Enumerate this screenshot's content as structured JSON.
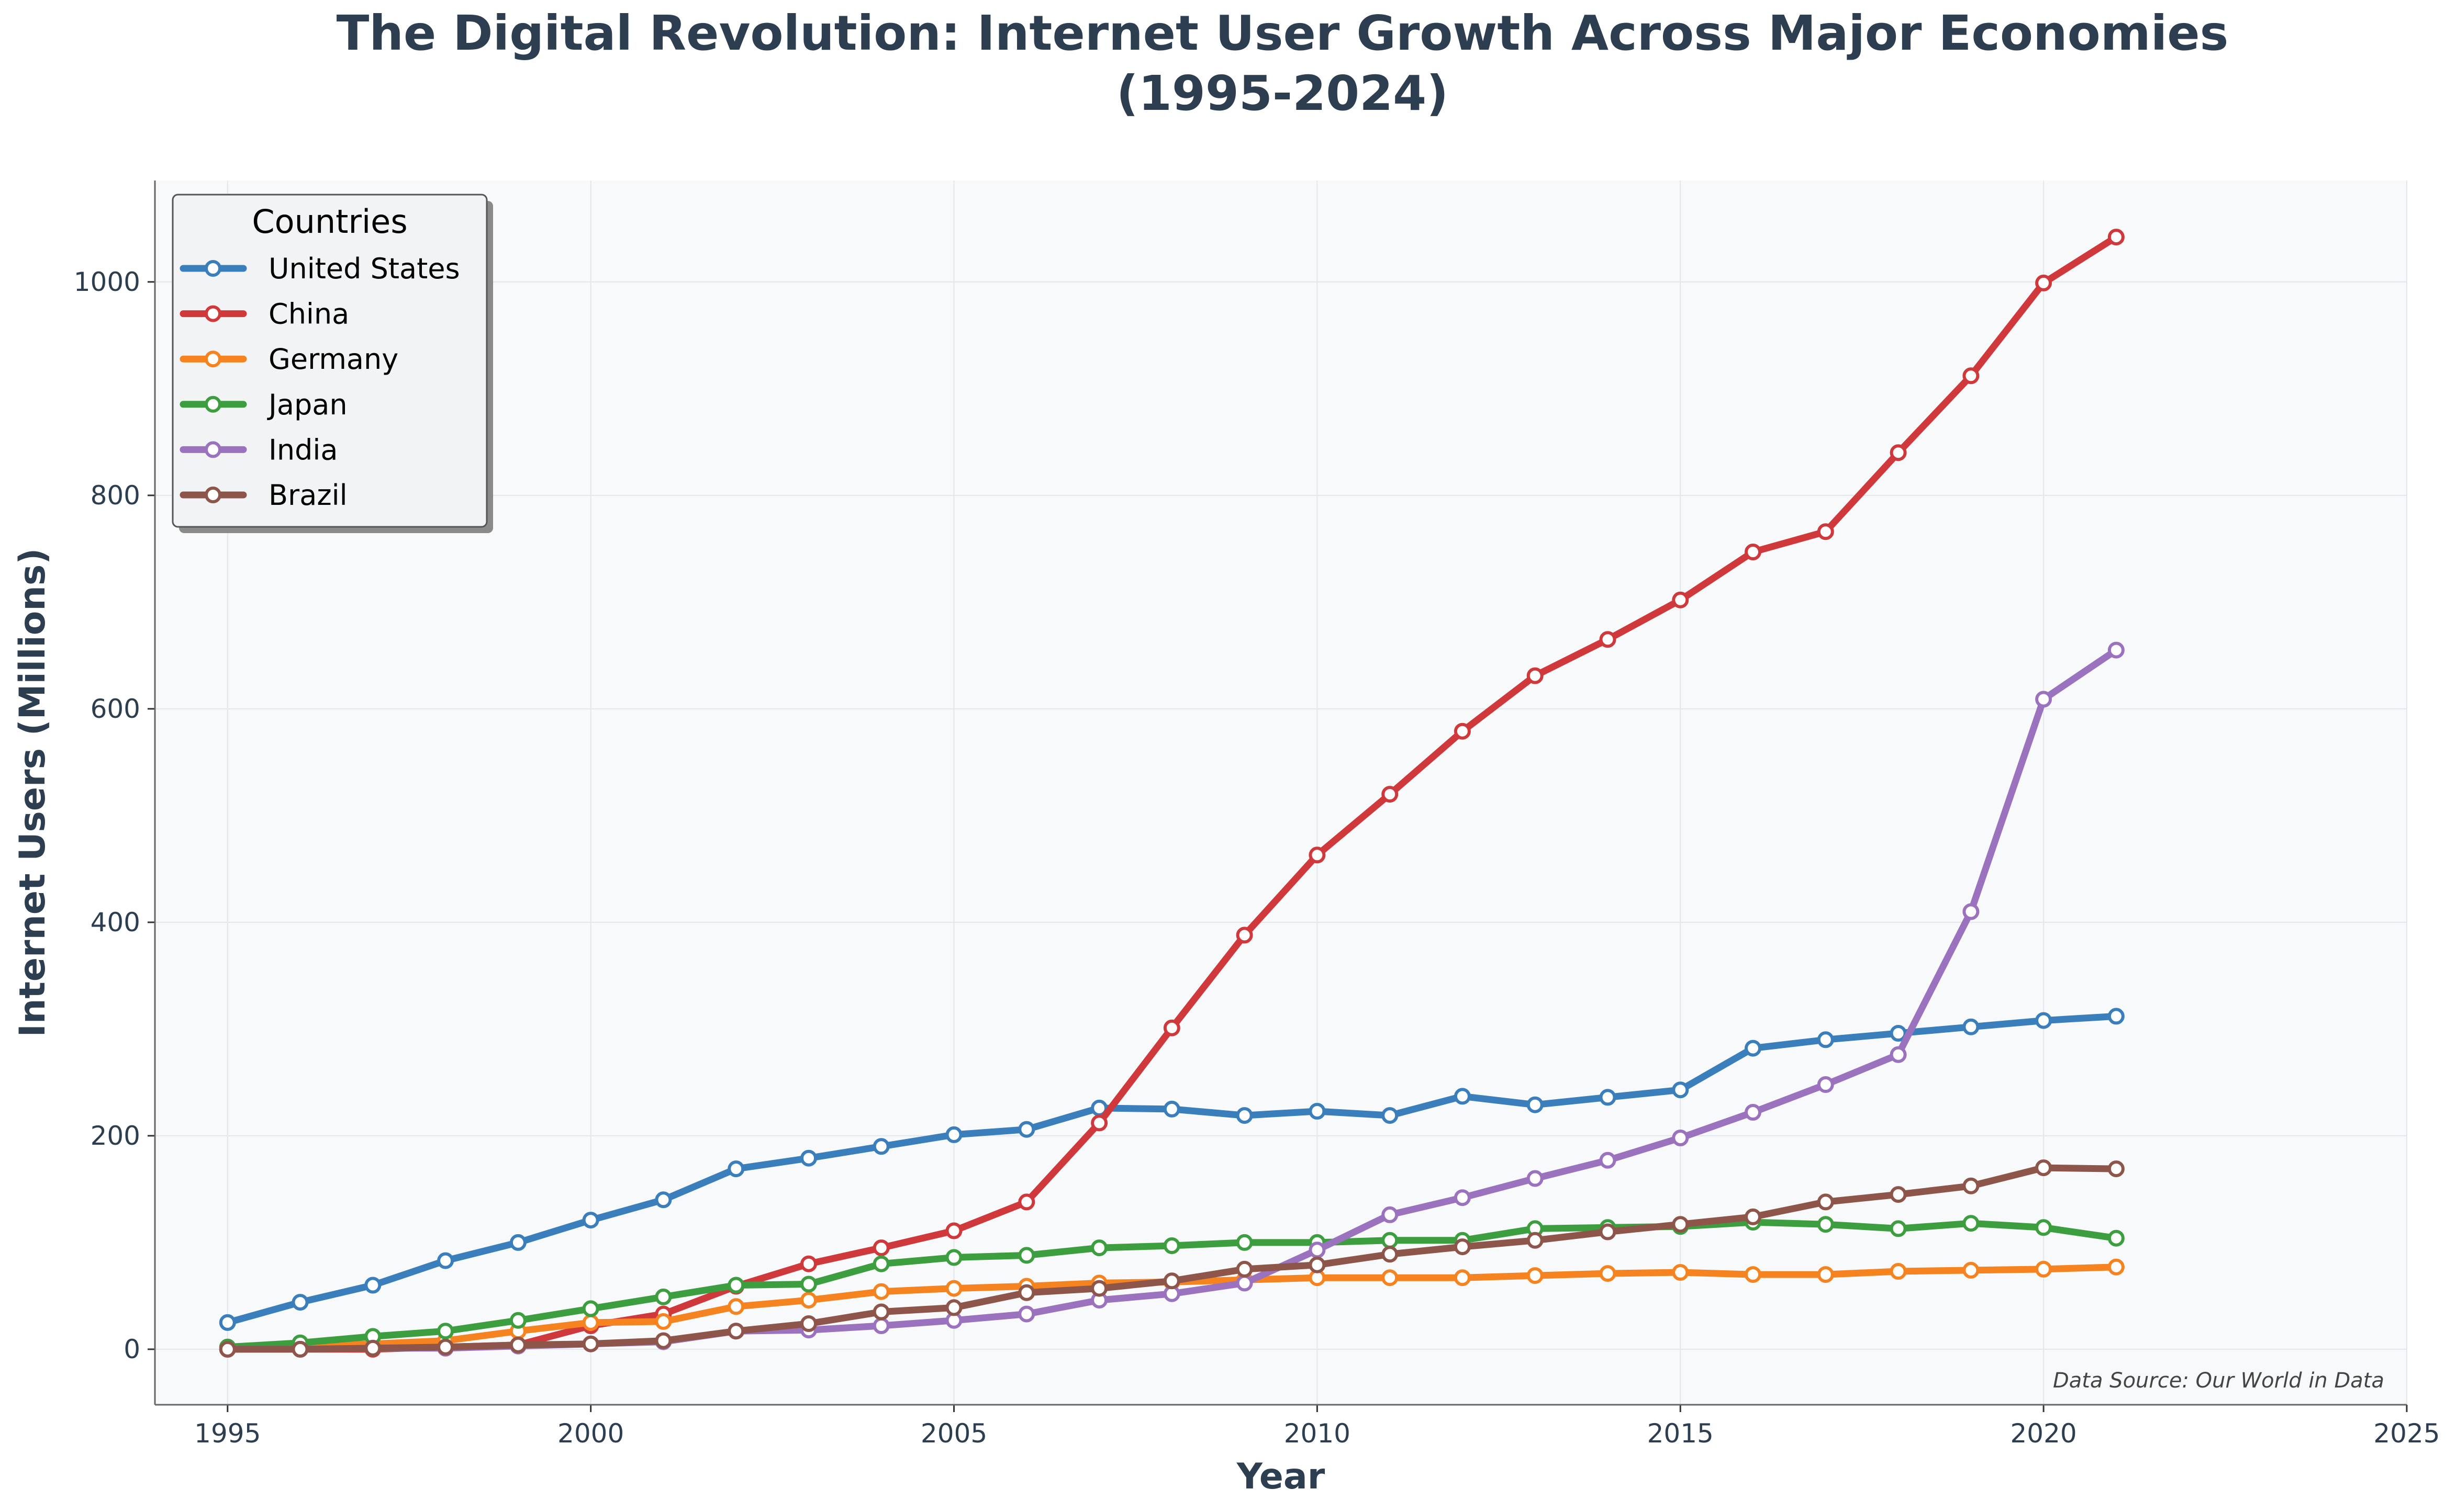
{
  "chart_data": {
    "type": "line",
    "title_line1": "The Digital Revolution: Internet User Growth Across Major Economies",
    "title_line2": "(1995-2024)",
    "xlabel": "Year",
    "ylabel": "Internet Users (Millions)",
    "xlim": [
      1994,
      2025
    ],
    "ylim": [
      -52,
      1095
    ],
    "xticks": [
      1995,
      2000,
      2005,
      2010,
      2015,
      2020,
      2025
    ],
    "yticks": [
      0,
      200,
      400,
      600,
      800,
      1000
    ],
    "grid": true,
    "legend_title": "Countries",
    "legend_position": "top-left",
    "source_note": "Data Source: Our World in Data",
    "x": [
      1995,
      1996,
      1997,
      1998,
      1999,
      2000,
      2001,
      2002,
      2003,
      2004,
      2005,
      2006,
      2007,
      2008,
      2009,
      2010,
      2011,
      2012,
      2013,
      2014,
      2015,
      2016,
      2017,
      2018,
      2019,
      2020,
      2021
    ],
    "series": [
      {
        "name": "United States",
        "color": "#3a7fbb",
        "values": [
          25,
          44,
          60,
          83,
          100,
          121,
          140,
          169,
          179,
          190,
          201,
          206,
          226,
          225,
          219,
          223,
          219,
          237,
          229,
          236,
          243,
          282,
          290,
          296,
          302,
          308,
          312
        ]
      },
      {
        "name": "China",
        "color": "#d0393b",
        "values": [
          0,
          0,
          0,
          2,
          4,
          22,
          33,
          59,
          80,
          95,
          111,
          138,
          212,
          301,
          388,
          463,
          520,
          579,
          631,
          665,
          702,
          747,
          766,
          840,
          912,
          999,
          1042
        ]
      },
      {
        "name": "Germany",
        "color": "#f58420",
        "values": [
          2,
          3,
          5,
          8,
          17,
          25,
          26,
          40,
          46,
          54,
          57,
          59,
          62,
          63,
          65,
          67,
          67,
          67,
          69,
          71,
          72,
          70,
          70,
          73,
          74,
          75,
          77
        ]
      },
      {
        "name": "Japan",
        "color": "#3d9e3f",
        "values": [
          2,
          6,
          12,
          17,
          27,
          38,
          49,
          60,
          61,
          80,
          86,
          88,
          95,
          97,
          100,
          100,
          102,
          102,
          113,
          114,
          115,
          119,
          117,
          113,
          118,
          114,
          104
        ]
      },
      {
        "name": "India",
        "color": "#9b72be",
        "values": [
          0,
          0,
          1,
          1,
          3,
          5,
          7,
          17,
          18,
          22,
          27,
          33,
          46,
          52,
          62,
          93,
          126,
          142,
          160,
          177,
          198,
          222,
          248,
          276,
          410,
          609,
          655
        ]
      },
      {
        "name": "Brazil",
        "color": "#8e564b",
        "values": [
          0,
          0,
          1,
          2,
          4,
          5,
          8,
          17,
          24,
          35,
          39,
          53,
          57,
          64,
          75,
          79,
          89,
          96,
          102,
          110,
          117,
          124,
          138,
          145,
          153,
          170,
          169
        ]
      }
    ]
  }
}
